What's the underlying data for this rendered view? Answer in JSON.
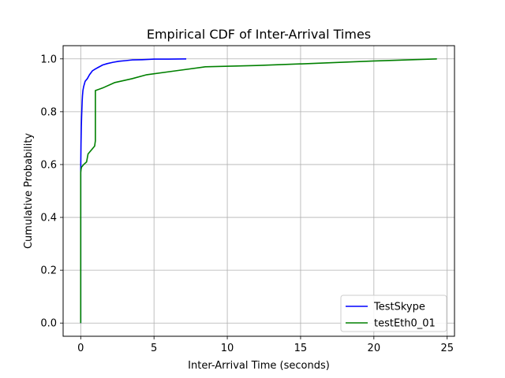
{
  "chart_data": {
    "type": "line",
    "title": "Empirical CDF of Inter-Arrival Times",
    "xlabel": "Inter-Arrival Time (seconds)",
    "ylabel": "Cumulative Probability",
    "xlim": [
      -1.2,
      25.5
    ],
    "ylim": [
      -0.05,
      1.05
    ],
    "xticks": [
      0,
      5,
      10,
      15,
      20,
      25
    ],
    "yticks": [
      0.0,
      0.2,
      0.4,
      0.6,
      0.8,
      1.0
    ],
    "xtick_labels": [
      "0",
      "5",
      "10",
      "15",
      "20",
      "25"
    ],
    "ytick_labels": [
      "0.0",
      "0.2",
      "0.4",
      "0.6",
      "0.8",
      "1.0"
    ],
    "grid": true,
    "legend_position": "lower-right",
    "series": [
      {
        "name": "TestSkype",
        "color": "#0000ff",
        "x": [
          0,
          0,
          0.01,
          0.02,
          0.04,
          0.06,
          0.08,
          0.1,
          0.12,
          0.15,
          0.2,
          0.3,
          0.45,
          0.6,
          0.8,
          1.0,
          1.2,
          1.5,
          1.8,
          2.2,
          2.6,
          3.0,
          3.5,
          4.2,
          5.0,
          6.0,
          7.2
        ],
        "y": [
          0,
          0.57,
          0.63,
          0.68,
          0.74,
          0.78,
          0.81,
          0.84,
          0.86,
          0.88,
          0.895,
          0.915,
          0.925,
          0.94,
          0.955,
          0.962,
          0.968,
          0.977,
          0.982,
          0.987,
          0.991,
          0.993,
          0.996,
          0.997,
          0.999,
          0.999,
          1.0
        ]
      },
      {
        "name": "testEth0_01",
        "color": "#008000",
        "x": [
          0,
          0,
          0.02,
          0.05,
          0.2,
          0.4,
          0.5,
          0.8,
          0.95,
          1.0,
          1.0,
          1.5,
          2.3,
          3.5,
          4.5,
          6.5,
          8.5,
          12,
          16,
          20,
          24.3
        ],
        "y": [
          0,
          0.57,
          0.58,
          0.59,
          0.6,
          0.61,
          0.64,
          0.66,
          0.67,
          0.69,
          0.88,
          0.89,
          0.91,
          0.925,
          0.94,
          0.955,
          0.97,
          0.975,
          0.983,
          0.992,
          1.0
        ]
      }
    ]
  }
}
